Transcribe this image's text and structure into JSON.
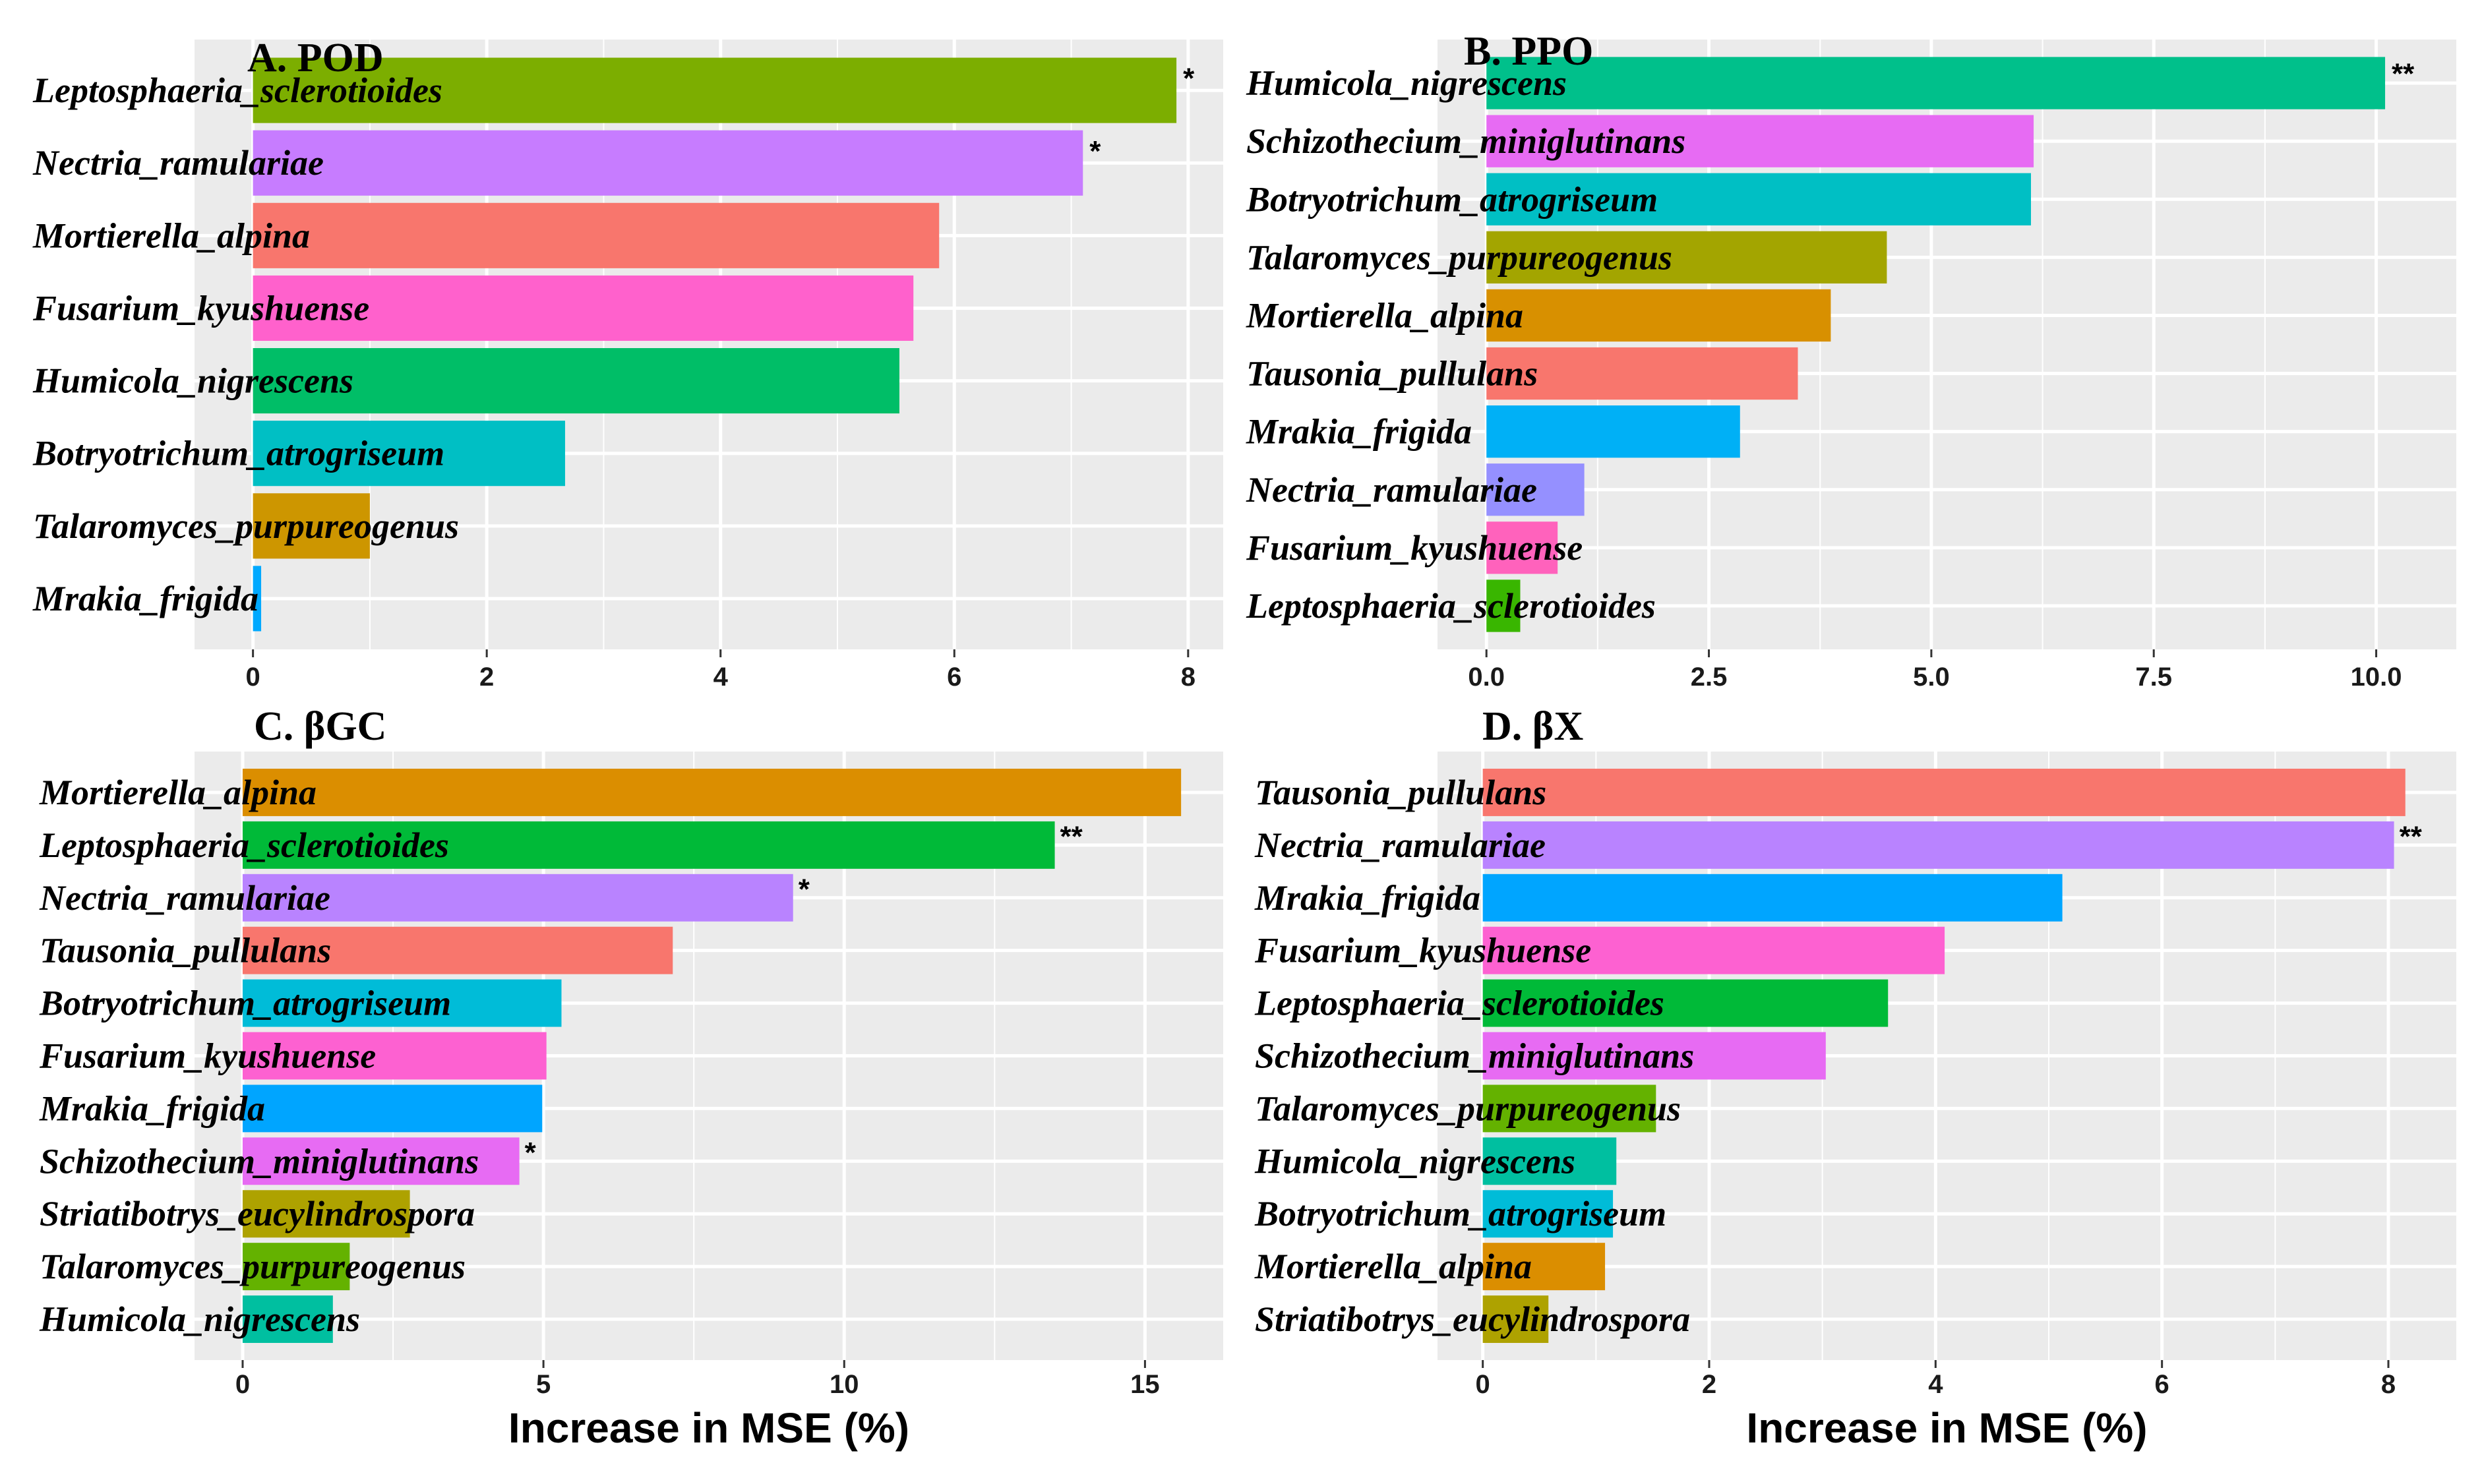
{
  "chart_data": [
    {
      "id": "A",
      "type": "bar",
      "orientation": "horizontal",
      "title": "A. POD",
      "xlabel": "",
      "xlim": [
        -0.5,
        8.3
      ],
      "xticks": [
        0,
        2,
        4,
        6,
        8
      ],
      "xtick_labels": [
        "0",
        "2",
        "4",
        "6",
        "8"
      ],
      "bars": [
        {
          "name": "Leptosphaeria_sclerotioides",
          "value": 7.9,
          "color": "#7CAE00",
          "sig": "*"
        },
        {
          "name": "Nectria_ramulariae",
          "value": 7.1,
          "color": "#C77CFF",
          "sig": "*"
        },
        {
          "name": "Mortierella_alpina",
          "value": 5.87,
          "color": "#F8766D",
          "sig": ""
        },
        {
          "name": "Fusarium_kyushuense",
          "value": 5.65,
          "color": "#FF61CC",
          "sig": ""
        },
        {
          "name": "Humicola_nigrescens",
          "value": 5.53,
          "color": "#00BE67",
          "sig": ""
        },
        {
          "name": "Botryotrichum_atrogriseum",
          "value": 2.67,
          "color": "#00BFC4",
          "sig": ""
        },
        {
          "name": "Talaromyces_purpureogenus",
          "value": 1.0,
          "color": "#CD9600",
          "sig": ""
        },
        {
          "name": "Mrakia_frigida",
          "value": 0.07,
          "color": "#00A9FF",
          "sig": ""
        }
      ]
    },
    {
      "id": "B",
      "type": "bar",
      "orientation": "horizontal",
      "title": "B. PPO",
      "xlabel": "",
      "xlim": [
        -0.55,
        10.9
      ],
      "xticks": [
        0,
        2.5,
        5,
        7.5,
        10
      ],
      "xtick_labels": [
        "0.0",
        "2.5",
        "5.0",
        "7.5",
        "10.0"
      ],
      "bars": [
        {
          "name": "Humicola_nigrescens",
          "value": 10.1,
          "color": "#00C08B",
          "sig": "**"
        },
        {
          "name": "Schizothecium_miniglutinans",
          "value": 6.15,
          "color": "#E76BF3",
          "sig": ""
        },
        {
          "name": "Botryotrichum_atrogriseum",
          "value": 6.12,
          "color": "#00BFC4",
          "sig": ""
        },
        {
          "name": "Talaromyces_purpureogenus",
          "value": 4.5,
          "color": "#A3A500",
          "sig": ""
        },
        {
          "name": "Mortierella_alpina",
          "value": 3.87,
          "color": "#D89000",
          "sig": ""
        },
        {
          "name": "Tausonia_pullulans",
          "value": 3.5,
          "color": "#F8766D",
          "sig": ""
        },
        {
          "name": "Mrakia_frigida",
          "value": 2.85,
          "color": "#00B0F6",
          "sig": ""
        },
        {
          "name": "Nectria_ramulariae",
          "value": 1.1,
          "color": "#9590FF",
          "sig": ""
        },
        {
          "name": "Fusarium_kyushuense",
          "value": 0.8,
          "color": "#FF62BC",
          "sig": ""
        },
        {
          "name": "Leptosphaeria_sclerotioides",
          "value": 0.38,
          "color": "#39B600",
          "sig": ""
        }
      ]
    },
    {
      "id": "C",
      "type": "bar",
      "orientation": "horizontal",
      "title": "C. βGC",
      "xlabel": "Increase in MSE (%)",
      "xlim": [
        -0.8,
        16.3
      ],
      "xticks": [
        0,
        5,
        10,
        15
      ],
      "xtick_labels": [
        "0",
        "5",
        "10",
        "15"
      ],
      "bars": [
        {
          "name": "Mortierella_alpina",
          "value": 15.6,
          "color": "#DB8E00",
          "sig": ""
        },
        {
          "name": "Leptosphaeria_sclerotioides",
          "value": 13.5,
          "color": "#00BA38",
          "sig": "**"
        },
        {
          "name": "Nectria_ramulariae",
          "value": 9.15,
          "color": "#B983FF",
          "sig": "*"
        },
        {
          "name": "Tausonia_pullulans",
          "value": 7.15,
          "color": "#F8766D",
          "sig": ""
        },
        {
          "name": "Botryotrichum_atrogriseum",
          "value": 5.3,
          "color": "#00BCD8",
          "sig": ""
        },
        {
          "name": "Fusarium_kyushuense",
          "value": 5.05,
          "color": "#FD61D1",
          "sig": ""
        },
        {
          "name": "Mrakia_frigida",
          "value": 4.98,
          "color": "#00A5FF",
          "sig": ""
        },
        {
          "name": "Schizothecium_miniglutinans",
          "value": 4.6,
          "color": "#E76BF3",
          "sig": "*"
        },
        {
          "name": "Striatibotrys_eucylindrospora",
          "value": 2.78,
          "color": "#AEA200",
          "sig": ""
        },
        {
          "name": "Talaromyces_purpureogenus",
          "value": 1.78,
          "color": "#64B200",
          "sig": ""
        },
        {
          "name": "Humicola_nigrescens",
          "value": 1.5,
          "color": "#00BFA0",
          "sig": ""
        }
      ]
    },
    {
      "id": "D",
      "type": "bar",
      "orientation": "horizontal",
      "title": "D. βX",
      "xlabel": "Increase in MSE (%)",
      "xlim": [
        -0.4,
        8.6
      ],
      "xticks": [
        0,
        2,
        4,
        6,
        8
      ],
      "xtick_labels": [
        "0",
        "2",
        "4",
        "6",
        "8"
      ],
      "bars": [
        {
          "name": "Tausonia_pullulans",
          "value": 8.15,
          "color": "#F8766D",
          "sig": ""
        },
        {
          "name": "Nectria_ramulariae",
          "value": 8.05,
          "color": "#B983FF",
          "sig": "**"
        },
        {
          "name": "Mrakia_frigida",
          "value": 5.12,
          "color": "#00A5FF",
          "sig": ""
        },
        {
          "name": "Fusarium_kyushuense",
          "value": 4.08,
          "color": "#FD61D1",
          "sig": ""
        },
        {
          "name": "Leptosphaeria_sclerotioides",
          "value": 3.58,
          "color": "#00BA38",
          "sig": ""
        },
        {
          "name": "Schizothecium_miniglutinans",
          "value": 3.03,
          "color": "#E76BF3",
          "sig": ""
        },
        {
          "name": "Talaromyces_purpureogenus",
          "value": 1.53,
          "color": "#64B200",
          "sig": ""
        },
        {
          "name": "Humicola_nigrescens",
          "value": 1.18,
          "color": "#00BFA0",
          "sig": ""
        },
        {
          "name": "Botryotrichum_atrogriseum",
          "value": 1.15,
          "color": "#00BCD8",
          "sig": ""
        },
        {
          "name": "Mortierella_alpina",
          "value": 1.08,
          "color": "#DB8E00",
          "sig": ""
        },
        {
          "name": "Striatibotrys_eucylindrospora",
          "value": 0.58,
          "color": "#AEA200",
          "sig": ""
        }
      ]
    }
  ],
  "colors": {
    "panel_background": "#EBEBEB",
    "gridline": "#FFFFFF"
  }
}
